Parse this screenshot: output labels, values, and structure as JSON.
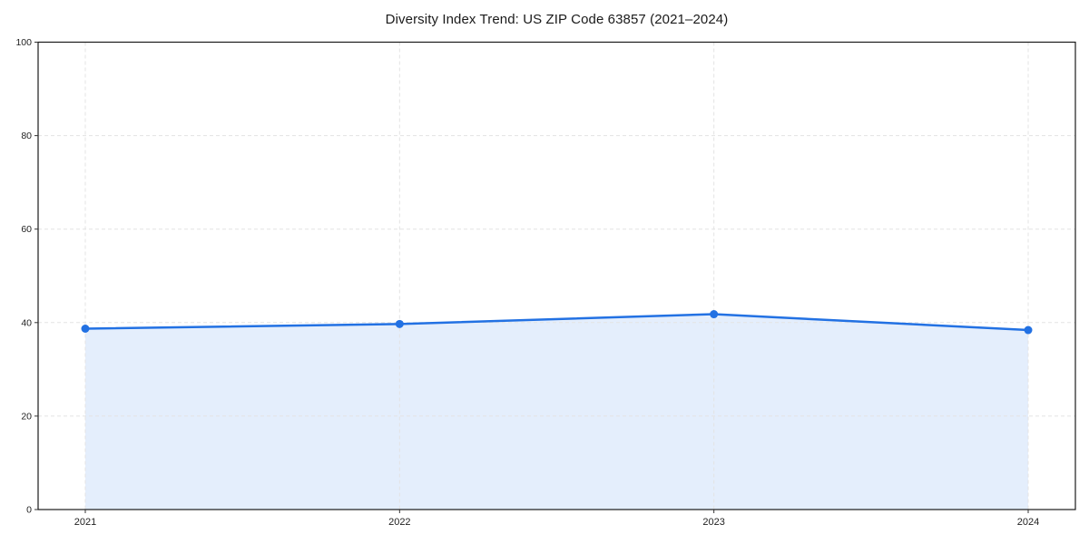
{
  "chart_data": {
    "type": "area",
    "title": "Diversity Index Trend: US ZIP Code 63857 (2021–2024)",
    "x": [
      "2021",
      "2022",
      "2023",
      "2024"
    ],
    "values": [
      38.7,
      39.7,
      41.8,
      38.4
    ],
    "xlabel": "",
    "ylabel": "",
    "ylim": [
      0,
      100
    ],
    "yticks": [
      0,
      20,
      40,
      60,
      80,
      100
    ],
    "grid": true,
    "grid_style": "dashed",
    "legend": "none",
    "line_color": "#2271e3",
    "marker_color": "#2271e3",
    "fill_color": "rgba(34,113,227,0.12)",
    "grid_color": "#e3e3e3",
    "spine_color": "#1a1a1a",
    "tick_color": "#333333",
    "marker": "circle"
  }
}
